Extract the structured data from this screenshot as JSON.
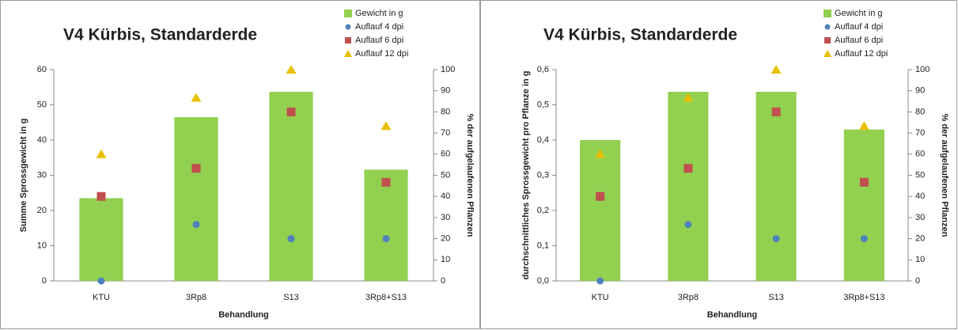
{
  "chart_data": [
    {
      "type": "bar",
      "title": "V4 Kürbis, Standarderde",
      "xlabel": "Behandlung",
      "ylabel": "Summe Sprossgewicht in g",
      "y2label": "% der aufgelaufenen Pflanzen",
      "categories": [
        "KTU",
        "3Rp8",
        "S13",
        "3Rp8+S13"
      ],
      "series": [
        {
          "name": "Gewicht in g",
          "color": "#92d050",
          "marker": "bar",
          "values": [
            23.5,
            46.5,
            53.7,
            31.6
          ]
        },
        {
          "name": "Auflauf 4 dpi",
          "color": "#4f81bd",
          "marker": "circle",
          "axis": "y2",
          "values": [
            0,
            26.7,
            20,
            20
          ]
        },
        {
          "name": "Auflauf 6 dpi",
          "color": "#c0504d",
          "marker": "square",
          "axis": "y2",
          "values": [
            40,
            53.3,
            80,
            46.7
          ]
        },
        {
          "name": "Auflauf 12 dpi",
          "color": "#e8c000",
          "marker": "triangle",
          "axis": "y2",
          "values": [
            60,
            86.7,
            100,
            73.3
          ]
        }
      ],
      "ylim": [
        0,
        60
      ],
      "yticks": [
        0,
        10,
        20,
        30,
        40,
        50,
        60
      ],
      "y2lim": [
        0,
        100
      ],
      "y2ticks": [
        0,
        10,
        20,
        30,
        40,
        50,
        60,
        70,
        80,
        90,
        100
      ],
      "grid": false,
      "legend": "top-right"
    },
    {
      "type": "bar",
      "title": "V4 Kürbis, Standarderde",
      "xlabel": "Behandlung",
      "ylabel": "durchschnittliches Sprossgewicht pro Pflanze in g",
      "y2label": "% der aufgelaufenen Pflanzen",
      "categories": [
        "KTU",
        "3Rp8",
        "S13",
        "3Rp8+S13"
      ],
      "series": [
        {
          "name": "Gewicht in g",
          "color": "#92d050",
          "marker": "bar",
          "values": [
            0.4,
            0.537,
            0.537,
            0.43
          ]
        },
        {
          "name": "Auflauf 4 dpi",
          "color": "#4f81bd",
          "marker": "circle",
          "axis": "y2",
          "values": [
            0,
            26.7,
            20,
            20
          ]
        },
        {
          "name": "Auflauf 6 dpi",
          "color": "#c0504d",
          "marker": "square",
          "axis": "y2",
          "values": [
            40,
            53.3,
            80,
            46.7
          ]
        },
        {
          "name": "Auflauf 12 dpi",
          "color": "#e8c000",
          "marker": "triangle",
          "axis": "y2",
          "values": [
            60,
            86.7,
            100,
            73.3
          ]
        }
      ],
      "ylim": [
        0,
        0.6
      ],
      "yticks": [
        {
          "value": 0,
          "label": "0,0"
        },
        {
          "value": 0.1,
          "label": "0,1"
        },
        {
          "value": 0.2,
          "label": "0,2"
        },
        {
          "value": 0.3,
          "label": "0,3"
        },
        {
          "value": 0.4,
          "label": "0,4"
        },
        {
          "value": 0.5,
          "label": "0,5"
        },
        {
          "value": 0.6,
          "label": "0,6"
        }
      ],
      "y2lim": [
        0,
        100
      ],
      "y2ticks": [
        0,
        10,
        20,
        30,
        40,
        50,
        60,
        70,
        80,
        90,
        100
      ],
      "grid": false,
      "legend": "top-right"
    }
  ]
}
